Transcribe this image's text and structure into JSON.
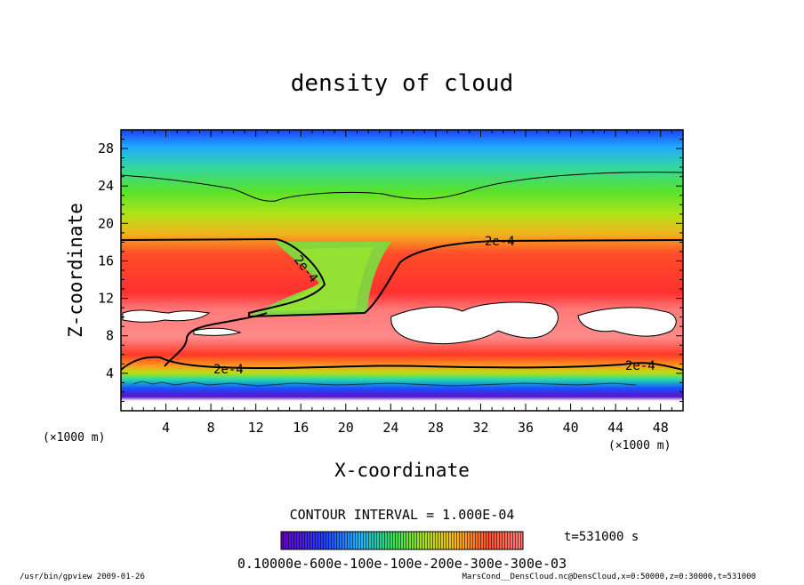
{
  "chart_data": {
    "type": "contour",
    "title": "density of cloud",
    "xlabel": "X-coordinate",
    "ylabel": "Z-coordinate",
    "x_unit": "(×1000 m)",
    "y_unit": "(×1000 m)",
    "xlim": [
      0,
      50
    ],
    "ylim": [
      0,
      30
    ],
    "x_ticks": [
      "4",
      "8",
      "12",
      "16",
      "20",
      "24",
      "28",
      "32",
      "36",
      "40",
      "44",
      "48"
    ],
    "y_ticks": [
      "4",
      "8",
      "12",
      "16",
      "20",
      "24",
      "28"
    ],
    "contour_interval": "CONTOUR INTERVAL = 1.000E-04",
    "time": "t=531000 s",
    "colorbar_ticks": "0.10000e-600e-100e-100e-200e-300e-300e-03",
    "contour_labels": [
      "2e-4",
      "2e-4",
      "2e-4",
      "2e-4"
    ],
    "contour_level_lines": [
      {
        "label": "2e-4",
        "x": [
          0,
          13,
          24,
          30,
          50
        ],
        "y": [
          18.3,
          18.3,
          16.5,
          18.2,
          18.3
        ]
      },
      {
        "label": "2e-4",
        "x": [
          0,
          50
        ],
        "y": [
          4.4,
          4.4
        ]
      }
    ],
    "colors": {
      "high": "#ff3030",
      "mid": "#32e432",
      "low": "#1a40ff"
    }
  },
  "footer": {
    "left": "/usr/bin/gpview  2009-01-26",
    "right": "MarsCond__DensCloud.nc@DensCloud,x=0:50000,z=0:30000,t=531000"
  }
}
